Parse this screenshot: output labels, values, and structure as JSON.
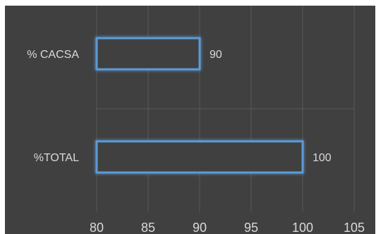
{
  "chart_data": {
    "type": "bar",
    "orientation": "horizontal",
    "categories": [
      "% CACSA",
      "%TOTAL"
    ],
    "values": [
      90,
      100
    ],
    "data_labels": [
      "90",
      "100"
    ],
    "xlim": [
      80,
      105
    ],
    "x_ticks": [
      80,
      85,
      90,
      95,
      100,
      105
    ],
    "x_tick_labels": [
      "80",
      "85",
      "90",
      "95",
      "100",
      "105"
    ],
    "grid": true,
    "legend": "none",
    "colors": {
      "background": "#404040",
      "gridline": "#595959",
      "bar_outline": "#5b9bd5",
      "bar_fill": "#404040",
      "text": "#d9d9d9"
    }
  }
}
